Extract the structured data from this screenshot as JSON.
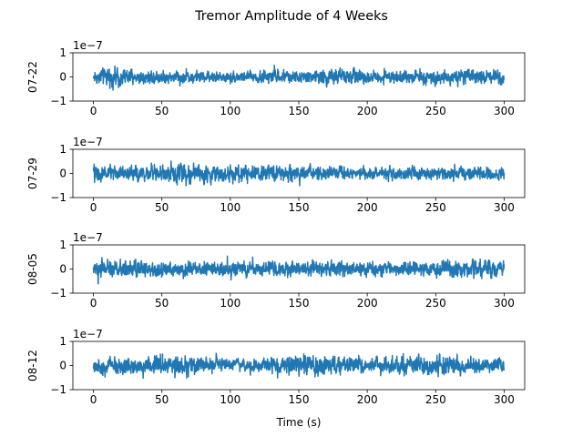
{
  "figure": {
    "title": "Tremor Amplitude of 4 Weeks",
    "xlabel": "Time (s)"
  },
  "chart_data": [
    {
      "type": "line",
      "ylabel": "07-22",
      "offset_label": "1e−7",
      "xlim": [
        -15,
        315
      ],
      "ylim": [
        -1,
        1
      ],
      "x_ticks": [
        0,
        50,
        100,
        150,
        200,
        250,
        300
      ],
      "y_ticks": [
        -1,
        0,
        1
      ],
      "x_range": [
        0,
        300
      ],
      "amplitude_envelope": [
        [
          0,
          0.55
        ],
        [
          10,
          0.75
        ],
        [
          20,
          0.8
        ],
        [
          30,
          0.65
        ],
        [
          50,
          0.55
        ],
        [
          70,
          0.5
        ],
        [
          100,
          0.45
        ],
        [
          130,
          0.6
        ],
        [
          150,
          0.45
        ],
        [
          175,
          0.65
        ],
        [
          180,
          0.85
        ],
        [
          200,
          0.5
        ],
        [
          220,
          0.45
        ],
        [
          250,
          0.6
        ],
        [
          280,
          0.55
        ],
        [
          295,
          0.75
        ],
        [
          300,
          0.6
        ]
      ],
      "color": "#1f77b4"
    },
    {
      "type": "line",
      "ylabel": "07-29",
      "offset_label": "1e−7",
      "xlim": [
        -15,
        315
      ],
      "ylim": [
        -1,
        1
      ],
      "x_ticks": [
        0,
        50,
        100,
        150,
        200,
        250,
        300
      ],
      "y_ticks": [
        -1,
        0,
        1
      ],
      "x_range": [
        0,
        300
      ],
      "amplitude_envelope": [
        [
          0,
          0.7
        ],
        [
          20,
          0.6
        ],
        [
          40,
          0.65
        ],
        [
          60,
          0.75
        ],
        [
          70,
          0.85
        ],
        [
          90,
          0.6
        ],
        [
          100,
          0.8
        ],
        [
          110,
          0.7
        ],
        [
          130,
          0.6
        ],
        [
          150,
          0.7
        ],
        [
          160,
          0.65
        ],
        [
          200,
          0.5
        ],
        [
          250,
          0.55
        ],
        [
          280,
          0.5
        ],
        [
          300,
          0.55
        ]
      ],
      "color": "#1f77b4"
    },
    {
      "type": "line",
      "ylabel": "08-05",
      "offset_label": "1e−7",
      "xlim": [
        -15,
        315
      ],
      "ylim": [
        -1,
        1
      ],
      "x_ticks": [
        0,
        50,
        100,
        150,
        200,
        250,
        300
      ],
      "y_ticks": [
        -1,
        0,
        1
      ],
      "x_range": [
        0,
        300
      ],
      "amplitude_envelope": [
        [
          0,
          0.6
        ],
        [
          30,
          0.7
        ],
        [
          60,
          0.6
        ],
        [
          90,
          0.55
        ],
        [
          120,
          0.6
        ],
        [
          150,
          0.6
        ],
        [
          200,
          0.55
        ],
        [
          250,
          0.6
        ],
        [
          280,
          0.75
        ],
        [
          300,
          0.6
        ]
      ],
      "color": "#1f77b4"
    },
    {
      "type": "line",
      "ylabel": "08-12",
      "offset_label": "1e−7",
      "xlim": [
        -15,
        315
      ],
      "ylim": [
        -1,
        1
      ],
      "x_ticks": [
        0,
        50,
        100,
        150,
        200,
        250,
        300
      ],
      "y_ticks": [
        -1,
        0,
        1
      ],
      "x_range": [
        0,
        300
      ],
      "amplitude_envelope": [
        [
          0,
          0.6
        ],
        [
          10,
          0.75
        ],
        [
          30,
          0.7
        ],
        [
          60,
          0.9
        ],
        [
          90,
          0.6
        ],
        [
          120,
          0.5
        ],
        [
          140,
          0.7
        ],
        [
          150,
          0.8
        ],
        [
          160,
          0.95
        ],
        [
          170,
          0.9
        ],
        [
          180,
          0.7
        ],
        [
          200,
          0.6
        ],
        [
          250,
          0.85
        ],
        [
          280,
          0.6
        ],
        [
          300,
          0.6
        ]
      ],
      "color": "#1f77b4"
    }
  ]
}
